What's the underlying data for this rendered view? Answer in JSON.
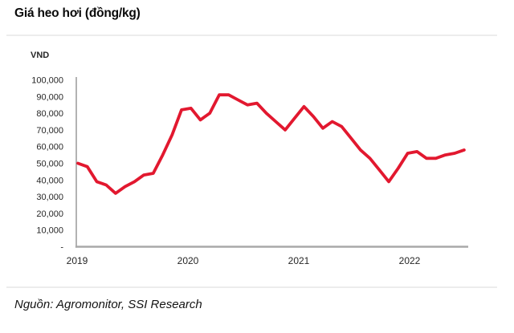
{
  "header": {
    "title": "Giá heo hơi (đồng/kg)"
  },
  "footer": {
    "source": "Nguồn: Agromonitor, SSI Research"
  },
  "chart_data": {
    "type": "line",
    "title": "Giá heo hơi (đồng/kg)",
    "unit_label": "VND",
    "line_color": "#e2182f",
    "axis_color": "#a9a9a9",
    "grid": "off",
    "legend": "none",
    "ylim": [
      0,
      100000
    ],
    "y_ticks": [
      {
        "value": 100000,
        "label": "100,000"
      },
      {
        "value": 90000,
        "label": "90,000"
      },
      {
        "value": 80000,
        "label": "80,000"
      },
      {
        "value": 70000,
        "label": "70,000"
      },
      {
        "value": 60000,
        "label": "60,000"
      },
      {
        "value": 50000,
        "label": "50,000"
      },
      {
        "value": 40000,
        "label": "40,000"
      },
      {
        "value": 30000,
        "label": "30,000"
      },
      {
        "value": 20000,
        "label": "20,000"
      },
      {
        "value": 10000,
        "label": "10,000"
      },
      {
        "value": 0,
        "label": "-"
      }
    ],
    "x_ticks": [
      {
        "label": "2019",
        "month_index": 0
      },
      {
        "label": "2020",
        "month_index": 12
      },
      {
        "label": "2021",
        "month_index": 24
      },
      {
        "label": "2022",
        "month_index": 36
      }
    ],
    "series": [
      {
        "id": "gia-heo-hoi",
        "name": "Giá heo hơi (đồng/kg)",
        "color": "#e2182f",
        "months": [
          "2019-01",
          "2019-02",
          "2019-03",
          "2019-04",
          "2019-05",
          "2019-06",
          "2019-07",
          "2019-08",
          "2019-09",
          "2019-10",
          "2019-11",
          "2019-12",
          "2020-01",
          "2020-02",
          "2020-03",
          "2020-04",
          "2020-05",
          "2020-06",
          "2020-07",
          "2020-08",
          "2020-09",
          "2020-10",
          "2020-11",
          "2020-12",
          "2021-01",
          "2021-02",
          "2021-03",
          "2021-04",
          "2021-05",
          "2021-06",
          "2021-07",
          "2021-08",
          "2021-09",
          "2021-10",
          "2021-11",
          "2021-12",
          "2022-01",
          "2022-02",
          "2022-03",
          "2022-04",
          "2022-05",
          "2022-06"
        ],
        "values": [
          50000,
          48000,
          39000,
          37000,
          32000,
          36000,
          39000,
          43000,
          44000,
          55000,
          67000,
          82000,
          83000,
          76000,
          80000,
          91000,
          91000,
          88000,
          85000,
          86000,
          80000,
          75000,
          70000,
          77000,
          84000,
          78000,
          71000,
          75000,
          72000,
          65000,
          58000,
          53000,
          46000,
          39000,
          47000,
          56000,
          57000,
          53000,
          53000,
          55000,
          56000,
          58000
        ]
      }
    ]
  }
}
